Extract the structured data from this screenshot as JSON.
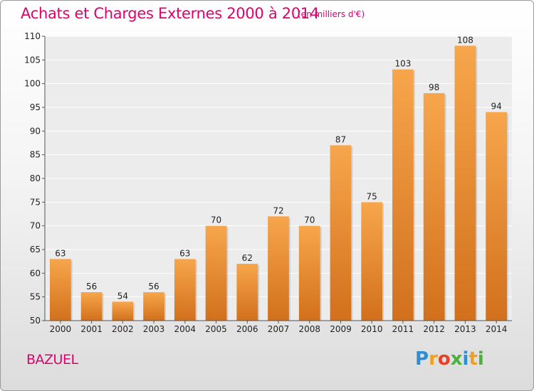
{
  "title": "Achats et Charges Externes 2000 à 2014",
  "subtitle": "(en milliers d'€)",
  "town": "BAZUEL",
  "logo": {
    "letters": [
      "P",
      "r",
      "o",
      "x",
      "i",
      "t",
      "i"
    ],
    "colors": [
      "#2a8fd6",
      "#f0a020",
      "#e8402a",
      "#4bb13c",
      "#2a8fd6",
      "#f0a020",
      "#4bb13c"
    ]
  },
  "colors": {
    "accent": "#e0006e",
    "bar_light": "#f7a64c",
    "bar_dark": "#d2701c"
  },
  "chart_data": {
    "type": "bar",
    "categories": [
      "2000",
      "2001",
      "2002",
      "2003",
      "2004",
      "2005",
      "2006",
      "2007",
      "2008",
      "2009",
      "2010",
      "2011",
      "2012",
      "2013",
      "2014"
    ],
    "values": [
      63,
      56,
      54,
      56,
      63,
      70,
      62,
      72,
      70,
      87,
      75,
      103,
      98,
      108,
      94
    ],
    "yticks": [
      50,
      55,
      60,
      65,
      70,
      75,
      80,
      85,
      90,
      95,
      100,
      105,
      110
    ],
    "ylim": [
      50,
      110
    ],
    "title": "Achats et Charges Externes 2000 à 2014",
    "subtitle": "(en milliers d'€)",
    "xlabel": "",
    "ylabel": "",
    "grid": true,
    "show_value_labels": true
  }
}
